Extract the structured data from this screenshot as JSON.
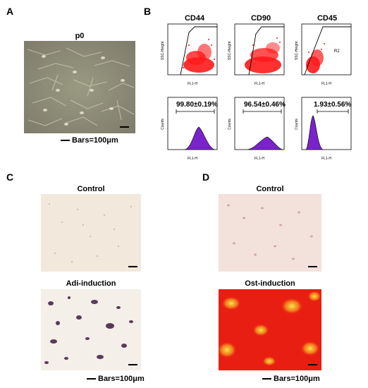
{
  "panel_a": {
    "label": "A",
    "title": "p0",
    "scale_note": "Bars=100μm"
  },
  "panel_b": {
    "label": "B",
    "markers": [
      {
        "name": "CD44",
        "percent": "99.80±0.19%"
      },
      {
        "name": "CD90",
        "percent": "96.54±0.46%"
      },
      {
        "name": "CD45",
        "percent": "1.93±0.56%"
      }
    ],
    "scatter_gate_label": "R2",
    "scatter_ylabel": "SSC-Height",
    "scatter_xlabel": "FL1-H",
    "hist_ylabel": "Counts",
    "hist_xlabel": "FL1-H",
    "colors": {
      "scatter": "#ff1a1a",
      "histogram": "#7a22cc"
    }
  },
  "panel_c": {
    "label": "C",
    "top_title": "Control",
    "bottom_title": "Adi-induction",
    "scale_note": "Bars=100μm"
  },
  "panel_d": {
    "label": "D",
    "top_title": "Control",
    "bottom_title": "Ost-induction",
    "scale_note": "Bars=100μm"
  }
}
